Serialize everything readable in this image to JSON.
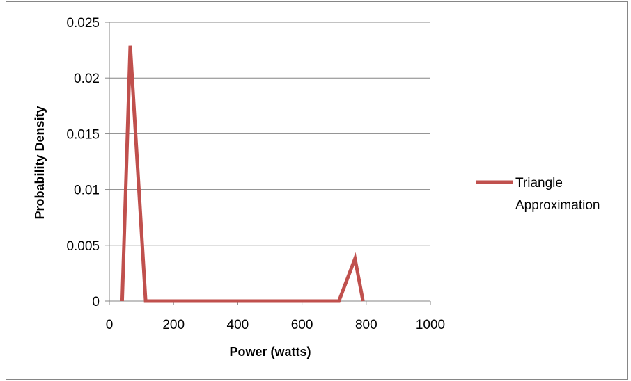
{
  "chart_data": {
    "type": "line",
    "title": "",
    "xlabel": "Power (watts)",
    "ylabel": "Probability Density",
    "xlim": [
      0,
      1000
    ],
    "ylim": [
      0,
      0.025
    ],
    "x_ticks": [
      0,
      200,
      400,
      600,
      800,
      1000
    ],
    "y_ticks": [
      0,
      0.005,
      0.01,
      0.015,
      0.02,
      0.025
    ],
    "x_tick_labels": [
      "0",
      "200",
      "400",
      "600",
      "800",
      "1000"
    ],
    "y_tick_labels": [
      "0",
      "0.005",
      "0.01",
      "0.015",
      "0.02",
      "0.025"
    ],
    "grid": "horizontal",
    "legend_position": "right",
    "series": [
      {
        "name": "Triangle Approximation",
        "color": "#c0504d",
        "points": [
          [
            40,
            0
          ],
          [
            65,
            0.0229
          ],
          [
            113,
            0
          ],
          [
            715,
            0
          ],
          [
            765,
            0.0038
          ],
          [
            790,
            0
          ]
        ]
      }
    ]
  },
  "legend": {
    "line1": "Triangle",
    "line2": "Approximation"
  }
}
